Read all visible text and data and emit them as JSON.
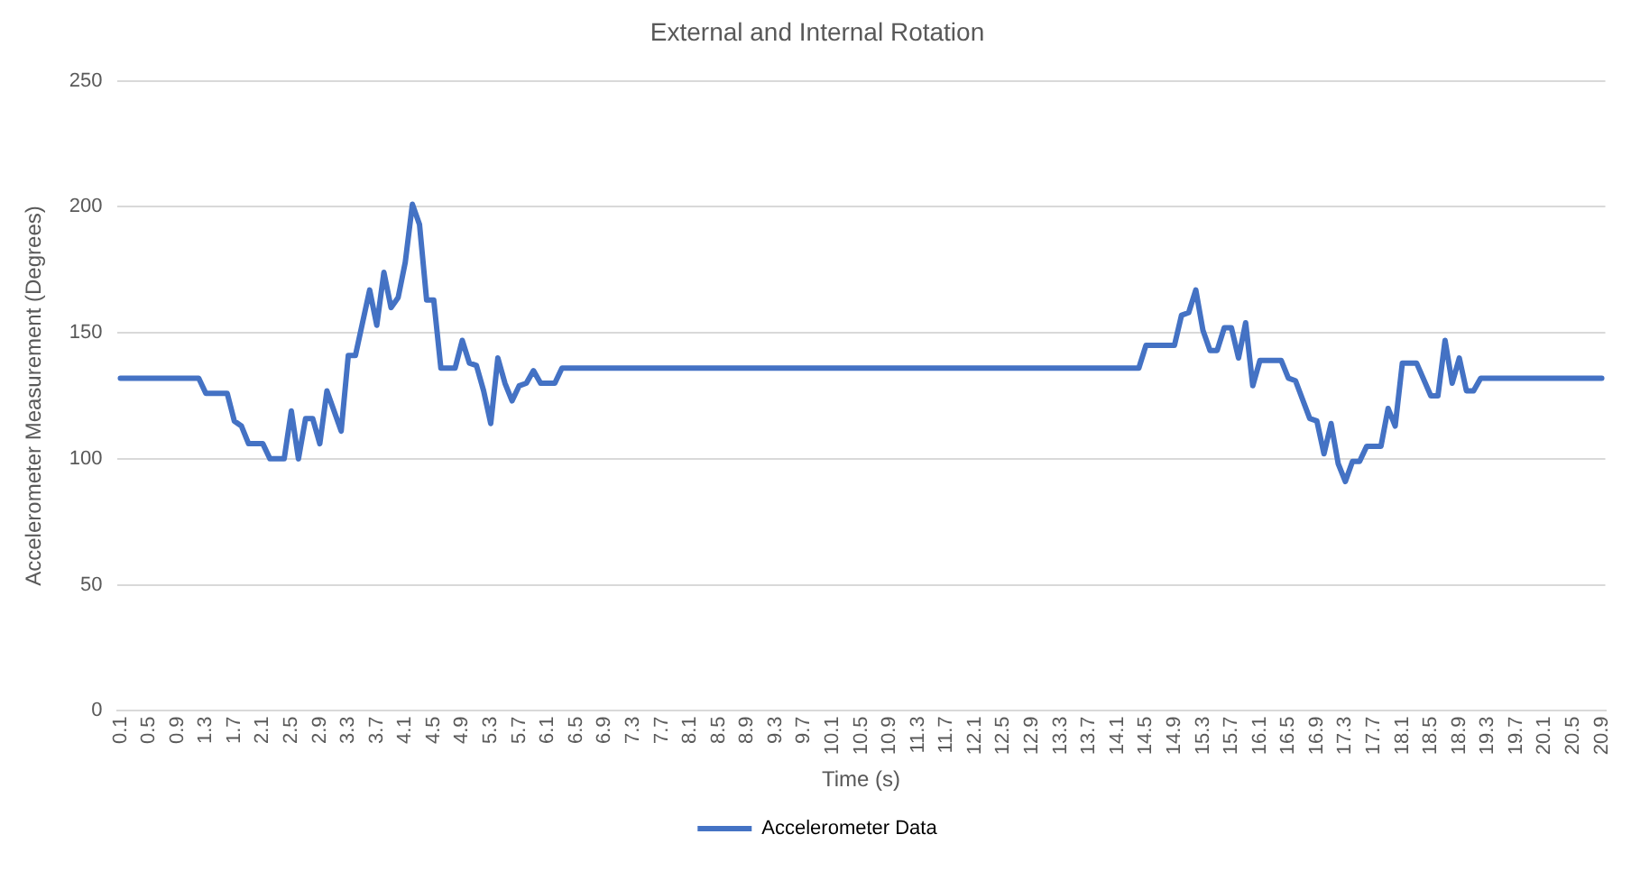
{
  "chart_data": {
    "type": "line",
    "title": "External and Internal Rotation",
    "xlabel": "Time (s)",
    "ylabel": "Accelerometer Measurement (Degrees)",
    "series": [
      {
        "name": "Accelerometer Data",
        "color": "#4472c4",
        "x": [
          0.1,
          1.2,
          1.3,
          1.6,
          1.7,
          1.8,
          1.9,
          2.1,
          2.2,
          2.4,
          2.5,
          2.6,
          2.7,
          2.8,
          2.9,
          3.0,
          3.2,
          3.3,
          3.4,
          3.5,
          3.6,
          3.7,
          3.8,
          3.9,
          4.0,
          4.1,
          4.2,
          4.3,
          4.4,
          4.5,
          4.6,
          4.8,
          4.9,
          5.0,
          5.1,
          5.2,
          5.3,
          5.4,
          5.5,
          5.6,
          5.7,
          5.8,
          5.9,
          6.0,
          6.2,
          6.3,
          14.4,
          14.5,
          14.9,
          15.0,
          15.1,
          15.2,
          15.3,
          15.4,
          15.5,
          15.6,
          15.7,
          15.8,
          15.9,
          16.0,
          16.1,
          16.4,
          16.5,
          16.6,
          16.8,
          16.9,
          17.0,
          17.1,
          17.2,
          17.3,
          17.4,
          17.5,
          17.6,
          17.8,
          17.9,
          18.0,
          18.1,
          18.3,
          18.5,
          18.6,
          18.7,
          18.8,
          18.9,
          19.0,
          19.1,
          19.2,
          20.9
        ],
        "values": [
          132,
          132,
          126,
          126,
          115,
          113,
          106,
          106,
          100,
          100,
          119,
          100,
          116,
          116,
          106,
          127,
          111,
          141,
          141,
          154,
          167,
          153,
          174,
          160,
          164,
          178,
          201,
          193,
          163,
          163,
          136,
          136,
          147,
          138,
          137,
          127,
          114,
          140,
          130,
          123,
          129,
          130,
          135,
          130,
          130,
          136,
          136,
          145,
          145,
          157,
          158,
          167,
          151,
          143,
          143,
          152,
          152,
          140,
          154,
          129,
          139,
          139,
          132,
          131,
          116,
          115,
          102,
          114,
          98,
          91,
          99,
          99,
          105,
          105,
          120,
          113,
          138,
          138,
          125,
          125,
          147,
          130,
          140,
          127,
          127,
          132,
          132
        ]
      }
    ],
    "xlim": [
      0.05,
      20.95
    ],
    "xticks": [
      0.1,
      0.5,
      0.9,
      1.3,
      1.7,
      2.1,
      2.5,
      2.9,
      3.3,
      3.7,
      4.1,
      4.5,
      4.9,
      5.3,
      5.7,
      6.1,
      6.5,
      6.9,
      7.3,
      7.7,
      8.1,
      8.5,
      8.9,
      9.3,
      9.7,
      10.1,
      10.5,
      10.9,
      11.3,
      11.7,
      12.1,
      12.5,
      12.9,
      13.3,
      13.7,
      14.1,
      14.5,
      14.9,
      15.3,
      15.7,
      16.1,
      16.5,
      16.9,
      17.3,
      17.7,
      18.1,
      18.5,
      18.9,
      19.3,
      19.7,
      20.1,
      20.5,
      20.9
    ],
    "ylim": [
      0,
      250
    ],
    "yticks": [
      0,
      50,
      100,
      150,
      200,
      250
    ],
    "grid": "y",
    "legend": "bottom",
    "marker": "none",
    "line_style": "solid"
  }
}
